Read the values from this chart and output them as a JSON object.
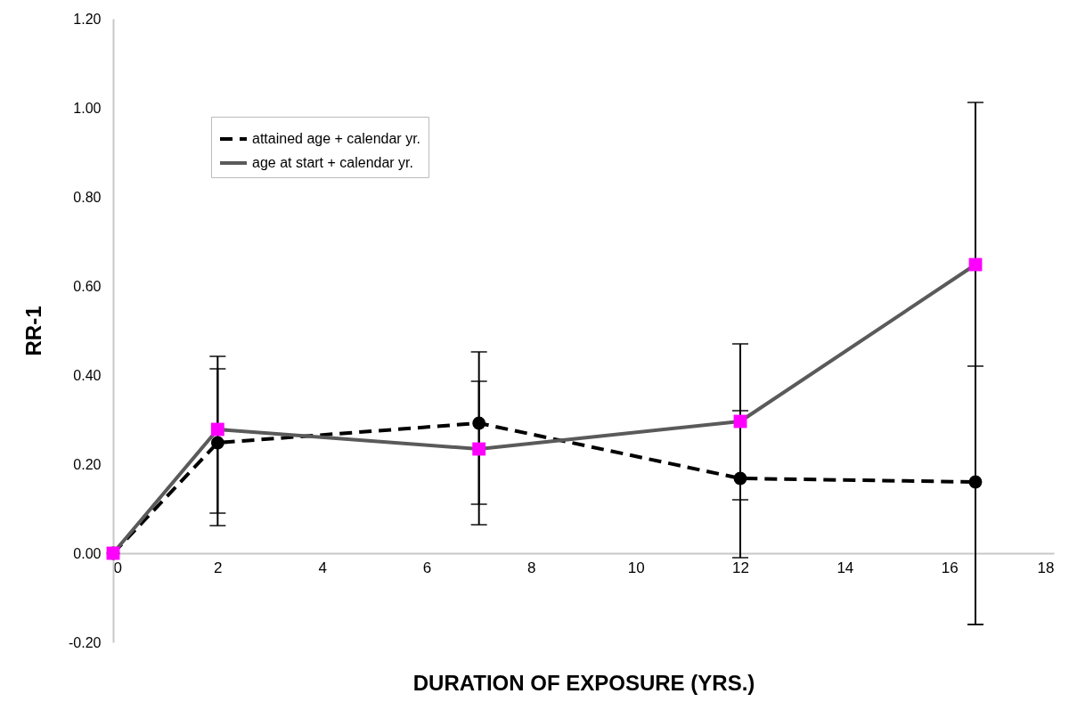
{
  "chart_data": {
    "type": "line",
    "xlabel": "DURATION OF EXPOSURE (YRS.)",
    "ylabel": "RR-1",
    "x": [
      0,
      2,
      7,
      12,
      16.5
    ],
    "series": [
      {
        "name": "attained age + calendar yr.",
        "color": "#000000",
        "marker": "circle",
        "line_style": "dashed",
        "values": [
          0,
          0.248,
          0.292,
          0.168,
          0.16
        ],
        "errors": [
          null,
          [
            0.062,
            0.442
          ],
          [
            0.064,
            0.452
          ],
          [
            -0.01,
            0.32
          ],
          [
            -0.16,
            0.42
          ]
        ]
      },
      {
        "name": "age at start + calendar yr.",
        "color": "#5a5a5a",
        "colors": [
          "#ff00ff",
          "#ff00ff",
          "#ff00ff",
          "#ff00ff",
          "#ff00ff"
        ],
        "marker": "square",
        "line_style": "solid",
        "values": [
          0,
          0.278,
          0.234,
          0.296,
          0.648
        ],
        "errors": [
          null,
          [
            0.09,
            0.414
          ],
          [
            0.11,
            0.386
          ],
          [
            0.12,
            0.47
          ],
          [
            -0.16,
            1.012
          ]
        ]
      }
    ],
    "xlim": [
      0,
      18
    ],
    "xticks": [
      0,
      2,
      4,
      6,
      8,
      10,
      12,
      14,
      16,
      18
    ],
    "ylim": [
      -0.2,
      1.2
    ],
    "yticks": [
      {
        "value": -0.2,
        "label": "-0.20"
      },
      {
        "value": 0,
        "label": "0.00"
      },
      {
        "value": 0.2,
        "label": "0.20"
      },
      {
        "value": 0.4,
        "label": "0.40"
      },
      {
        "value": 0.6,
        "label": "0.60"
      },
      {
        "value": 0.8,
        "label": "0.80"
      },
      {
        "value": 1,
        "label": "1.00"
      },
      {
        "value": 1.2,
        "label": "1.20"
      }
    ],
    "grid": false,
    "legend": "top left"
  }
}
